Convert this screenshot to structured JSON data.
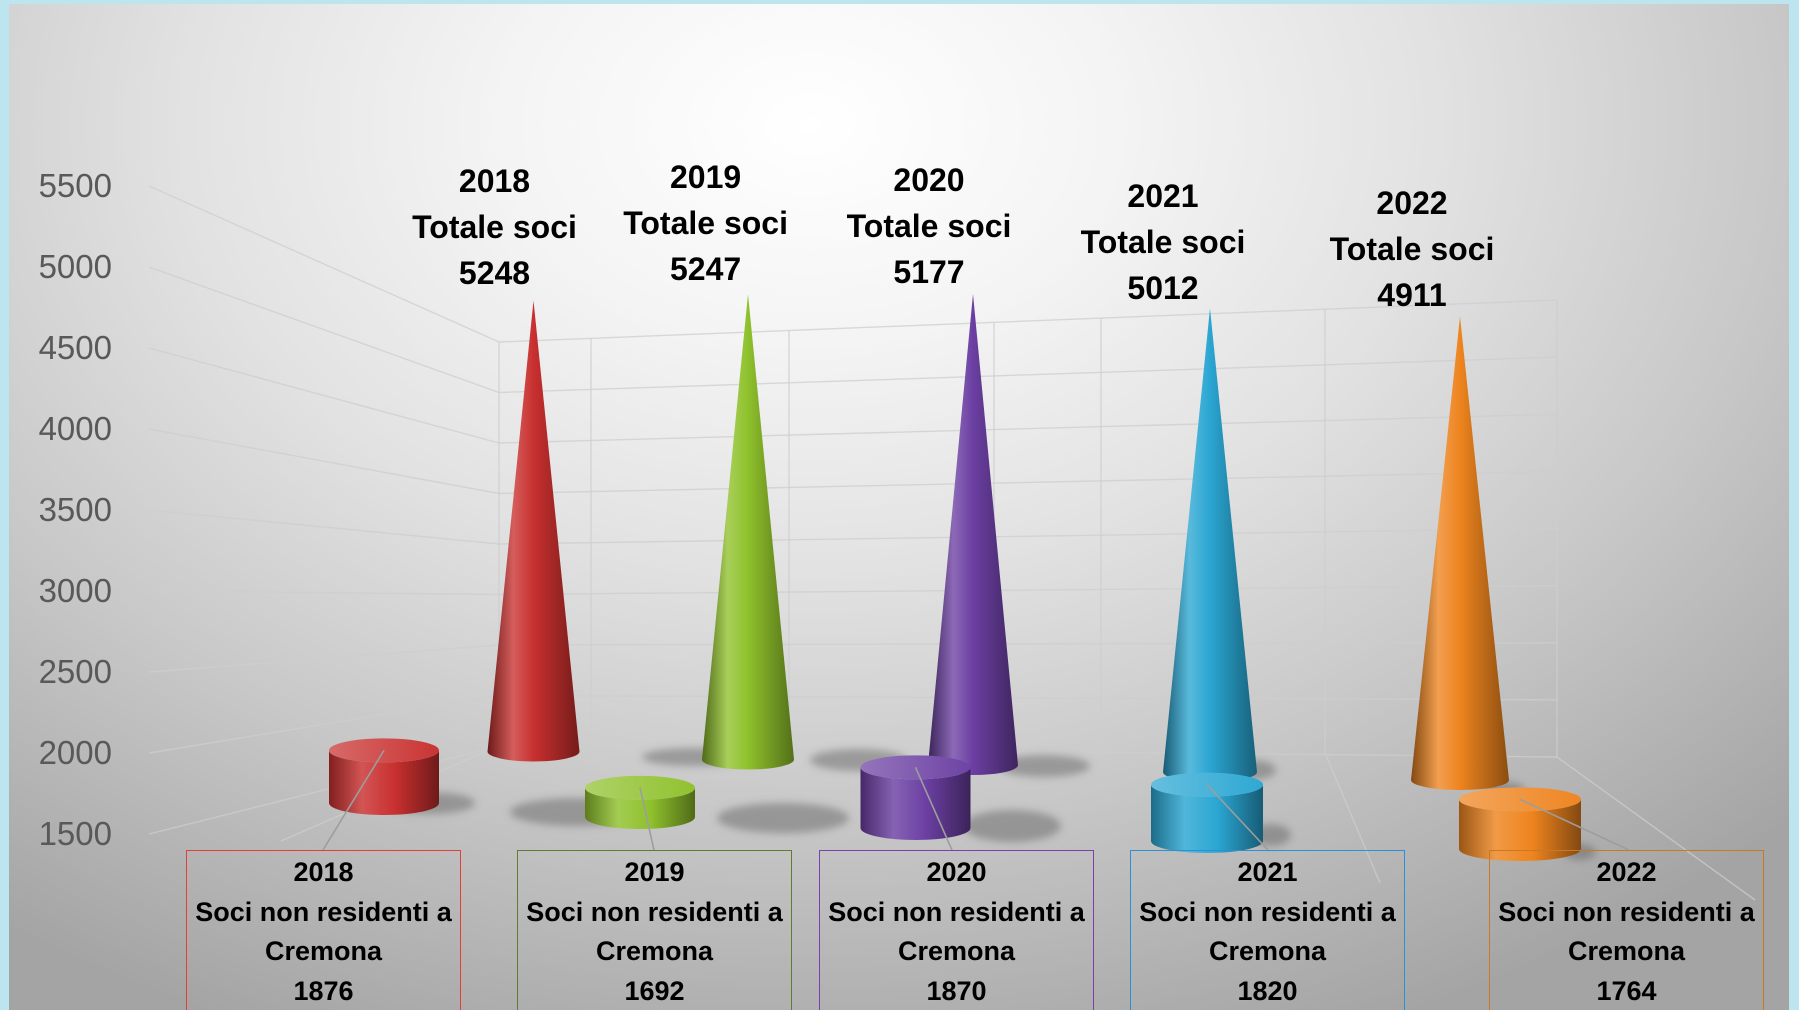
{
  "chart_data": {
    "type": "bar",
    "categories": [
      "2018",
      "2019",
      "2020",
      "2021",
      "2022"
    ],
    "series": [
      {
        "name": "Totale soci",
        "values": [
          5248,
          5247,
          5177,
          5012,
          4911
        ]
      },
      {
        "name": "Soci non residenti a Cremona",
        "values": [
          1876,
          1692,
          1870,
          1820,
          1764
        ]
      }
    ],
    "y_axis": {
      "min": 1500,
      "max": 5500,
      "ticks": [
        5500,
        5000,
        4500,
        4000,
        3500,
        3000,
        2500,
        2000,
        1500
      ]
    },
    "ylim": [
      1500,
      5500
    ],
    "grid": true
  },
  "colors": {
    "series_by_year": [
      "#c8302f",
      "#8fc12c",
      "#6b3fa2",
      "#2aa6d2",
      "#ee841e"
    ],
    "label_box_borders": [
      "#e0403a",
      "#5f7d2c",
      "#7a3fa8",
      "#2f8fd3",
      "#c97828"
    ],
    "label_text": "#000000",
    "axis_text": "#595959"
  }
}
